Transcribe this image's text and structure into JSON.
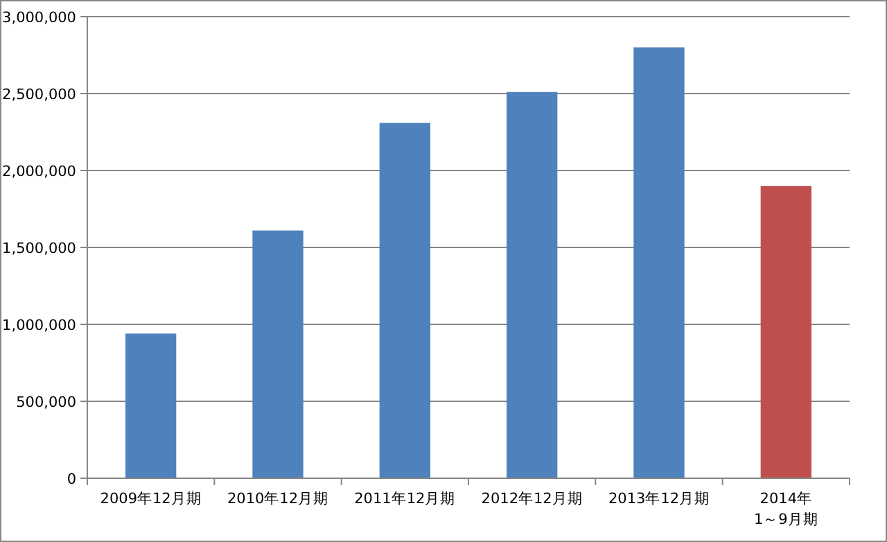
{
  "chart_data": {
    "type": "bar",
    "categories": [
      "2009年12月期",
      "2010年12月期",
      "2011年12月期",
      "2012年12月期",
      "2013年12月期",
      "2014年\n1～9月期"
    ],
    "values": [
      940000,
      1610000,
      2310000,
      2510000,
      2800000,
      1900000
    ],
    "colors": [
      "#4f81bd",
      "#4f81bd",
      "#4f81bd",
      "#4f81bd",
      "#4f81bd",
      "#c0504d"
    ],
    "ylim": [
      0,
      3000000
    ],
    "yticks": [
      {
        "value": 0,
        "label": "0"
      },
      {
        "value": 500000,
        "label": "500,000"
      },
      {
        "value": 1000000,
        "label": "1,000,000"
      },
      {
        "value": 1500000,
        "label": "1,500,000"
      },
      {
        "value": 2000000,
        "label": "2,000,000"
      },
      {
        "value": 2500000,
        "label": "2,500,000"
      },
      {
        "value": 3000000,
        "label": "3,000,000"
      }
    ],
    "grid": "y"
  }
}
